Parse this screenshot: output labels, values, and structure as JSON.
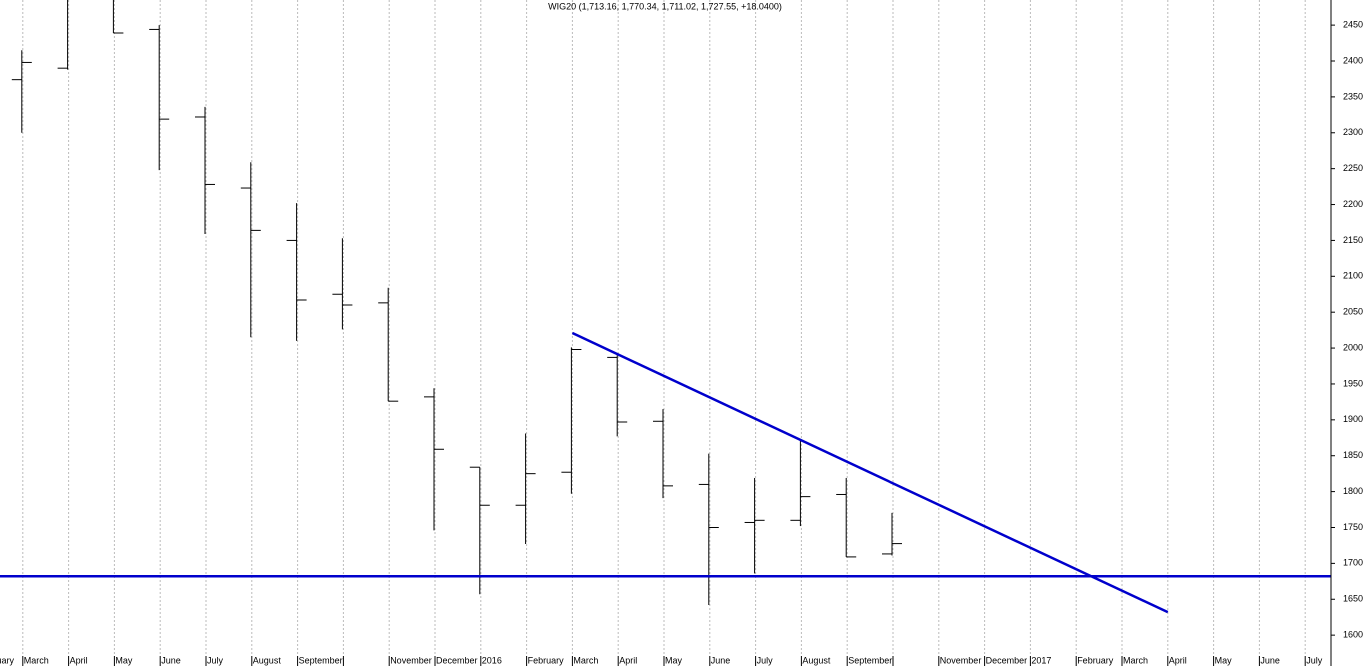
{
  "chart_data": {
    "type": "ohlc",
    "title": "WIG20 (1,713.16, 1,770.34, 1,711.02, 1,727.55, +18.0400)",
    "categories": [
      "February",
      "March",
      "April",
      "May",
      "June",
      "July",
      "August",
      "September",
      null,
      "November",
      "December",
      "2016",
      "February",
      "March",
      "April",
      "May",
      "June",
      "July",
      "August",
      "September",
      null,
      "November",
      "December",
      "2017",
      "February",
      "March",
      "April",
      "May",
      "June",
      "July"
    ],
    "open": [
      null,
      2374,
      2390,
      2500,
      2444,
      2322,
      2223,
      2150,
      2075,
      2063,
      1932,
      1834,
      1781,
      1827,
      1987,
      1898,
      1810,
      1757,
      1760,
      1796,
      1713.16,
      null,
      null,
      null,
      null,
      null,
      null,
      null,
      null,
      null
    ],
    "high": [
      null,
      2415,
      2530,
      2520,
      2450,
      2336,
      2259,
      2202,
      2153,
      2084,
      1944,
      1834,
      1881,
      2001,
      1990,
      1915,
      1853,
      1819,
      1872,
      1819,
      1770.34,
      null,
      null,
      null,
      null,
      null,
      null,
      null,
      null,
      null
    ],
    "low": [
      null,
      2300,
      2388,
      2439,
      2248,
      2159,
      2015,
      2010,
      2026,
      1926,
      1746,
      1657,
      1727,
      1797,
      1877,
      1791,
      1642,
      1686,
      1752,
      1709,
      1711.02,
      null,
      null,
      null,
      null,
      null,
      null,
      null,
      null,
      null
    ],
    "close": [
      null,
      2398,
      2510,
      2439,
      2319,
      2228,
      2164,
      2067,
      2060,
      1926,
      1859,
      1781,
      1825,
      1998,
      1897,
      1808,
      1750,
      1760,
      1793,
      1709,
      1727.55,
      null,
      null,
      null,
      null,
      null,
      null,
      null,
      null,
      null
    ],
    "color": "#000000",
    "ylim": [
      1557,
      2485
    ],
    "yticks": [
      1600,
      1650,
      1700,
      1750,
      1800,
      1850,
      1900,
      1950,
      2000,
      2050,
      2100,
      2150,
      2200,
      2250,
      2300,
      2350,
      2400,
      2450
    ],
    "grid": "x",
    "horizontal_lines": [
      1682
    ],
    "trend_lines": [
      {
        "x": [
          13,
          26
        ],
        "values": [
          2021,
          1632
        ]
      }
    ],
    "line_color": "#0000cc"
  }
}
